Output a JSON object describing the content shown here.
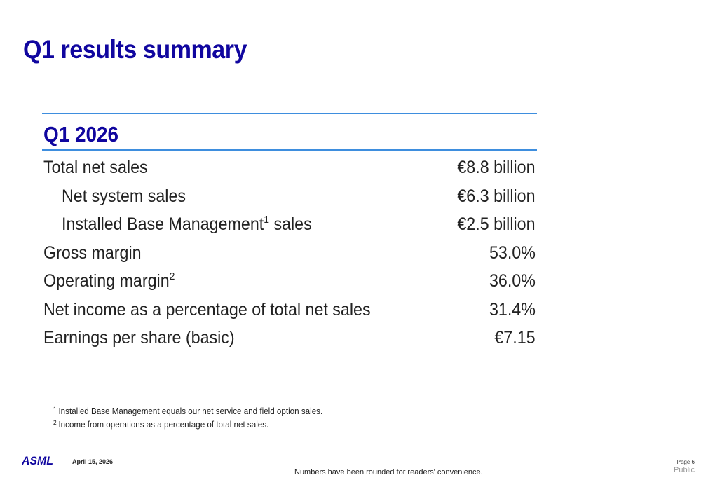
{
  "slide": {
    "title": "Q1 results summary",
    "period": "Q1 2026"
  },
  "metrics": [
    {
      "label": "Total net sales",
      "footnote": "",
      "suffix": "",
      "value": "€8.8 billion"
    },
    {
      "label": "Net system sales",
      "footnote": "",
      "suffix": "",
      "value": "€6.3 billion"
    },
    {
      "label": "Installed Base Management",
      "footnote": "1",
      "suffix": " sales",
      "value": "€2.5 billion"
    },
    {
      "label": "Gross margin",
      "footnote": "",
      "suffix": "",
      "value": "53.0%"
    },
    {
      "label": "Operating margin",
      "footnote": "2",
      "suffix": "",
      "value": "36.0%"
    },
    {
      "label": "Net income as a percentage of total net sales",
      "footnote": "",
      "suffix": "",
      "value": "31.4%"
    },
    {
      "label": "Earnings per share (basic)",
      "footnote": "",
      "suffix": "",
      "value": "€7.15"
    }
  ],
  "footnotes": [
    {
      "marker": "1",
      "text": "Installed Base Management equals our net service and field option sales."
    },
    {
      "marker": "2",
      "text": "Income from operations as a percentage of total net sales."
    }
  ],
  "footer": {
    "logo_text": "ASML",
    "date": "April 15, 2026",
    "note": "Numbers have been rounded for readers' convenience.",
    "page": "Page 6",
    "classification": "Public"
  },
  "colors": {
    "title": "#10069f",
    "rule": "#3e8ede",
    "logo": "#10069f"
  }
}
